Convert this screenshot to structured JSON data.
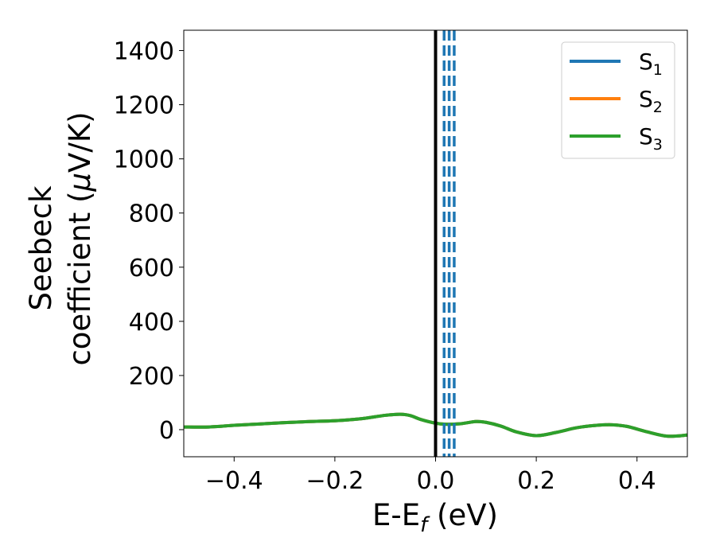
{
  "chart_data": {
    "type": "line",
    "title": "",
    "xlabel": {
      "base": "E-E",
      "sub": "f",
      "tail": " (eV)"
    },
    "ylabel": {
      "line1": "Seebeck",
      "line2": "coefficient  (",
      "mu": "μ",
      "tail": "V/K)"
    },
    "xlim": [
      -0.5,
      0.5
    ],
    "ylim": [
      -100,
      1475
    ],
    "xticks": [
      -0.4,
      -0.2,
      0.0,
      0.2,
      0.4
    ],
    "xtick_labels": [
      "−0.4",
      "−0.2",
      "0.0",
      "0.2",
      "0.4"
    ],
    "yticks": [
      0,
      200,
      400,
      600,
      800,
      1000,
      1200,
      1400
    ],
    "ytick_labels": [
      "0",
      "200",
      "400",
      "600",
      "800",
      "1000",
      "1200",
      "1400"
    ],
    "grid": false,
    "legend_position": "top-right",
    "vertical_lines": [
      {
        "x": 0.0,
        "style": "solid",
        "color": "#000000"
      },
      {
        "x": 0.017,
        "style": "dashed",
        "color": "#1f77b4"
      },
      {
        "x": 0.027,
        "style": "dashed",
        "color": "#1f77b4"
      },
      {
        "x": 0.037,
        "style": "dashed",
        "color": "#1f77b4"
      }
    ],
    "x": [
      -0.5,
      -0.45,
      -0.4,
      -0.35,
      -0.3,
      -0.25,
      -0.2,
      -0.15,
      -0.1,
      -0.07,
      -0.05,
      -0.03,
      0.0,
      0.02,
      0.05,
      0.08,
      0.1,
      0.13,
      0.16,
      0.2,
      0.24,
      0.28,
      0.32,
      0.35,
      0.38,
      0.42,
      0.46,
      0.5
    ],
    "series": [
      {
        "name_base": "S",
        "name_sub": "1",
        "color": "#1f77b4",
        "values": [
          10,
          10,
          16,
          21,
          26,
          30,
          33,
          40,
          53,
          57,
          52,
          38,
          24,
          20,
          22,
          30,
          27,
          13,
          -8,
          -22,
          -10,
          7,
          16,
          18,
          12,
          -8,
          -24,
          -20
        ]
      },
      {
        "name_base": "S",
        "name_sub": "2",
        "color": "#ff7f0e",
        "values": [
          10,
          10,
          16,
          21,
          26,
          30,
          33,
          40,
          53,
          57,
          52,
          38,
          24,
          20,
          22,
          30,
          27,
          13,
          -8,
          -22,
          -10,
          7,
          16,
          18,
          12,
          -8,
          -24,
          -20
        ]
      },
      {
        "name_base": "S",
        "name_sub": "3",
        "color": "#2ca02c",
        "values": [
          10,
          10,
          16,
          21,
          26,
          30,
          33,
          40,
          53,
          57,
          52,
          38,
          24,
          20,
          22,
          30,
          27,
          13,
          -8,
          -22,
          -10,
          7,
          16,
          18,
          12,
          -8,
          -24,
          -20
        ]
      }
    ]
  }
}
